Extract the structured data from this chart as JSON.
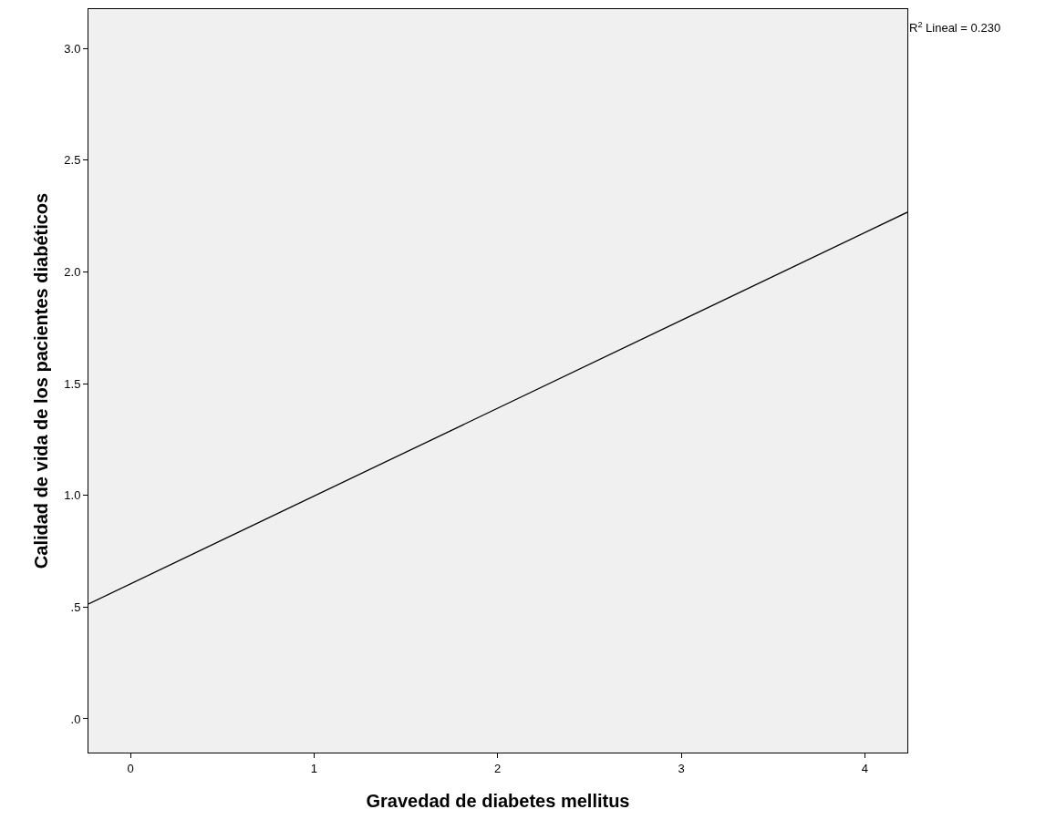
{
  "chart_data": {
    "type": "line",
    "xlabel": "Gravedad de diabetes mellitus",
    "ylabel": "Calidad de vida de los pacientes diabéticos",
    "annotations": [
      "R$^{2}$ Lineal = 0.230"
    ],
    "series": [
      {
        "color": "#000000",
        "x": [
          -0.229,
          4.232
        ],
        "values": [
          0.514,
          2.267
        ]
      }
    ],
    "xlim": [
      -0.229,
      4.232
    ],
    "xticks": [
      0,
      1,
      2,
      3,
      4
    ],
    "ylim": [
      -0.151,
      3.176
    ],
    "yticks": [
      {
        "value": 0,
        "label": ".0"
      },
      {
        "value": 0.5,
        "label": ".5"
      },
      {
        "value": 1.0,
        "label": "1.0"
      },
      {
        "value": 1.5,
        "label": "1.5"
      },
      {
        "value": 2.0,
        "label": "2.0"
      },
      {
        "value": 2.5,
        "label": "2.5"
      },
      {
        "value": 3.0,
        "label": "3.0"
      }
    ],
    "grid": false,
    "marker": "none",
    "line_style": "solid"
  }
}
